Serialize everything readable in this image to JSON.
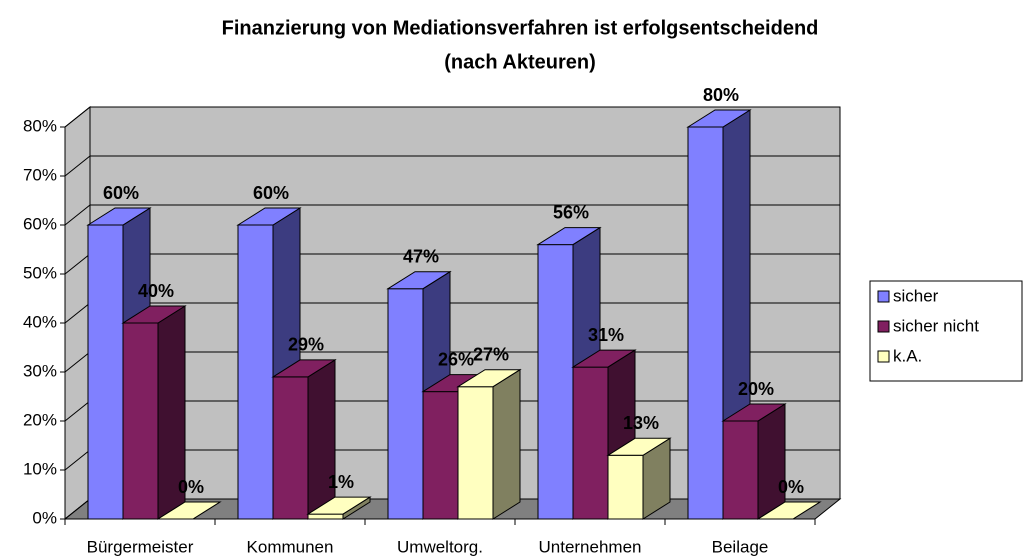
{
  "chart_data": {
    "type": "bar3d",
    "title": [
      "Finanzierung von Mediationsverfahren ist erfolgsentscheidend",
      "(nach Akteuren)"
    ],
    "categories": [
      "Bürgermeister",
      "Kommunen",
      "Umweltorg.",
      "Unternehmen",
      "Beilage"
    ],
    "series": [
      {
        "name": "sicher",
        "color": "#8080ff",
        "side": "#3c3c80",
        "values": [
          60,
          60,
          47,
          56,
          80
        ],
        "value_labels": [
          "60%",
          "60%",
          "47%",
          "56%",
          "80%"
        ]
      },
      {
        "name": "sicher nicht",
        "color": "#802060",
        "side": "#401030",
        "values": [
          40,
          29,
          26,
          31,
          20
        ],
        "value_labels": [
          "40%",
          "29%",
          "26%",
          "31%",
          "20%"
        ]
      },
      {
        "name": "k.A.",
        "color": "#ffffc0",
        "side": "#808060",
        "values": [
          0,
          1,
          27,
          13,
          0
        ],
        "value_labels": [
          "0%",
          "1%",
          "27%",
          "13%",
          "0%"
        ]
      }
    ],
    "ylim": [
      0,
      80
    ],
    "yticks": [
      {
        "value": 0,
        "label": "0%"
      },
      {
        "value": 10,
        "label": "10%"
      },
      {
        "value": 20,
        "label": "20%"
      },
      {
        "value": 30,
        "label": "30%"
      },
      {
        "value": 40,
        "label": "40%"
      },
      {
        "value": 50,
        "label": "50%"
      },
      {
        "value": 60,
        "label": "60%"
      },
      {
        "value": 70,
        "label": "70%"
      },
      {
        "value": 80,
        "label": "80%"
      }
    ],
    "grid": true,
    "legend": "right"
  }
}
